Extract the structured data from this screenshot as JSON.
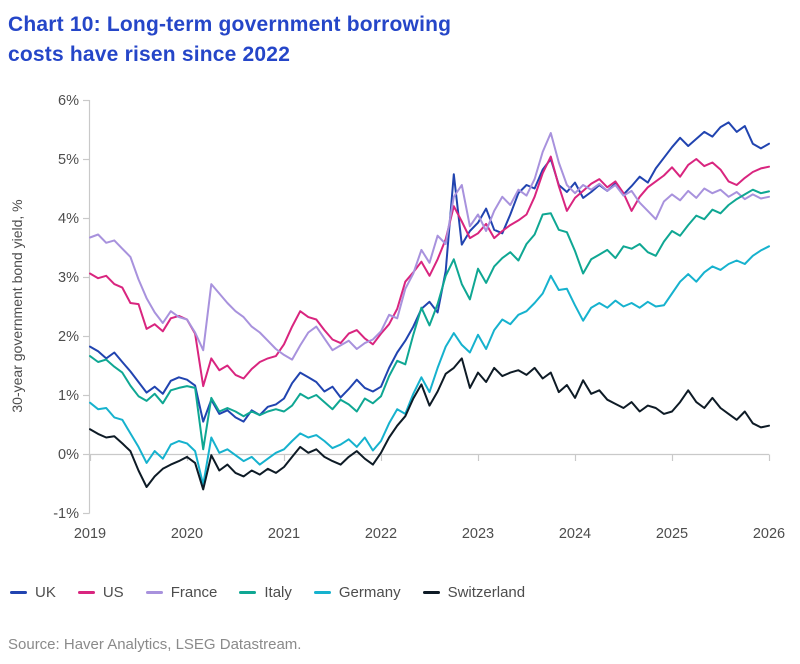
{
  "title": {
    "line1": "Chart 10: Long-term government borrowing",
    "line2": "costs have risen since 2022"
  },
  "source": "Source: Haver Analytics, LSEG Datastream.",
  "colors": {
    "title_blue": "#2546c8",
    "axis_gray": "#c9c9c9",
    "text_gray": "#4d4d4d",
    "source_gray": "#8a8a8a"
  },
  "legend": [
    {
      "label": "UK",
      "color": "#2144b0"
    },
    {
      "label": "US",
      "color": "#d9257f"
    },
    {
      "label": "France",
      "color": "#a892dd"
    },
    {
      "label": "Italy",
      "color": "#0fa793"
    },
    {
      "label": "Germany",
      "color": "#16b2ce"
    },
    {
      "label": "Switzerland",
      "color": "#0e1b26"
    }
  ],
  "chart_data": {
    "type": "line",
    "title": "Chart 10: Long-term government borrowing costs have risen since 2022",
    "xlabel": "",
    "ylabel": "30-year government bond yield, %",
    "xlim": [
      2019,
      2026
    ],
    "ylim": [
      -1,
      6
    ],
    "grid": "zero-baseline-only",
    "legend_position": "bottom",
    "x_tick_labels": [
      "2019",
      "2020",
      "2021",
      "2022",
      "2023",
      "2024",
      "2025",
      "2026"
    ],
    "y_tick_labels": [
      "6%",
      "5%",
      "4%",
      "3%",
      "2%",
      "1%",
      "0%",
      "-1%"
    ],
    "y_tick_values": [
      6,
      5,
      4,
      3,
      2,
      1,
      0,
      -1
    ],
    "x_start": 2019.0,
    "x_step": 0.0833333,
    "x_unit": "years (monthly samples, 2019-01 to 2026-01)",
    "series": [
      {
        "name": "UK",
        "color": "#2144b0",
        "values": [
          1.82,
          1.74,
          1.62,
          1.72,
          1.56,
          1.4,
          1.22,
          1.04,
          1.14,
          1.02,
          1.24,
          1.3,
          1.26,
          1.16,
          0.55,
          0.92,
          0.68,
          0.74,
          0.62,
          0.55,
          0.74,
          0.66,
          0.8,
          0.84,
          0.94,
          1.2,
          1.38,
          1.3,
          1.22,
          1.06,
          1.14,
          0.96,
          1.1,
          1.26,
          1.12,
          1.06,
          1.14,
          1.46,
          1.72,
          1.92,
          2.16,
          2.46,
          2.58,
          2.4,
          3.1,
          4.74,
          3.55,
          3.78,
          3.92,
          4.16,
          3.8,
          3.74,
          4.06,
          4.42,
          4.56,
          4.5,
          4.82,
          5.0,
          4.56,
          4.44,
          4.6,
          4.34,
          4.44,
          4.56,
          4.46,
          4.58,
          4.4,
          4.54,
          4.7,
          4.6,
          4.84,
          5.02,
          5.2,
          5.36,
          5.22,
          5.34,
          5.46,
          5.38,
          5.54,
          5.62,
          5.46,
          5.56,
          5.26,
          5.18,
          5.26
        ]
      },
      {
        "name": "US",
        "color": "#d9257f",
        "values": [
          3.06,
          2.98,
          3.02,
          2.88,
          2.82,
          2.56,
          2.54,
          2.12,
          2.2,
          2.08,
          2.3,
          2.34,
          2.28,
          2.04,
          1.15,
          1.62,
          1.42,
          1.5,
          1.34,
          1.28,
          1.44,
          1.56,
          1.62,
          1.66,
          1.86,
          2.16,
          2.42,
          2.32,
          2.28,
          2.1,
          1.94,
          1.88,
          2.04,
          2.1,
          1.96,
          1.86,
          2.04,
          2.2,
          2.46,
          2.92,
          3.08,
          3.26,
          3.02,
          3.3,
          3.64,
          4.2,
          3.94,
          3.66,
          3.74,
          3.9,
          3.66,
          3.78,
          3.88,
          3.96,
          4.06,
          4.36,
          4.76,
          5.04,
          4.54,
          4.12,
          4.34,
          4.46,
          4.58,
          4.66,
          4.52,
          4.62,
          4.42,
          4.12,
          4.36,
          4.52,
          4.62,
          4.72,
          4.86,
          4.7,
          4.9,
          5.0,
          4.88,
          4.94,
          4.82,
          4.62,
          4.56,
          4.68,
          4.78,
          4.84,
          4.87
        ]
      },
      {
        "name": "France",
        "color": "#a892dd",
        "values": [
          3.67,
          3.72,
          3.58,
          3.62,
          3.48,
          3.34,
          2.96,
          2.64,
          2.4,
          2.22,
          2.42,
          2.32,
          2.28,
          2.06,
          1.76,
          2.88,
          2.72,
          2.56,
          2.42,
          2.32,
          2.16,
          2.06,
          1.92,
          1.78,
          1.68,
          1.6,
          1.84,
          2.06,
          2.16,
          1.96,
          1.76,
          1.84,
          1.92,
          1.78,
          1.88,
          1.94,
          2.08,
          2.36,
          2.3,
          2.8,
          3.06,
          3.46,
          3.24,
          3.7,
          3.56,
          4.36,
          4.56,
          3.86,
          4.06,
          3.78,
          4.12,
          4.36,
          4.22,
          4.48,
          4.38,
          4.66,
          5.12,
          5.44,
          4.94,
          4.56,
          4.42,
          4.56,
          4.48,
          4.58,
          4.46,
          4.56,
          4.38,
          4.46,
          4.26,
          4.12,
          3.98,
          4.28,
          4.4,
          4.3,
          4.46,
          4.34,
          4.5,
          4.42,
          4.48,
          4.36,
          4.44,
          4.32,
          4.4,
          4.33,
          4.36
        ]
      },
      {
        "name": "Italy",
        "color": "#0fa793",
        "values": [
          1.66,
          1.56,
          1.6,
          1.48,
          1.38,
          1.16,
          0.98,
          0.9,
          1.02,
          0.86,
          1.08,
          1.12,
          1.15,
          1.12,
          0.08,
          0.95,
          0.72,
          0.78,
          0.72,
          0.64,
          0.72,
          0.66,
          0.72,
          0.76,
          0.72,
          0.82,
          1.02,
          0.94,
          1.0,
          0.88,
          0.76,
          0.92,
          0.84,
          0.72,
          0.94,
          0.86,
          0.98,
          1.32,
          1.58,
          1.52,
          2.02,
          2.48,
          2.18,
          2.54,
          3.02,
          3.3,
          2.88,
          2.62,
          3.14,
          2.9,
          3.18,
          3.32,
          3.42,
          3.28,
          3.56,
          3.72,
          4.06,
          4.08,
          3.8,
          3.76,
          3.44,
          3.06,
          3.3,
          3.38,
          3.46,
          3.32,
          3.52,
          3.48,
          3.56,
          3.42,
          3.36,
          3.6,
          3.78,
          3.7,
          3.88,
          4.04,
          3.98,
          4.14,
          4.08,
          4.22,
          4.32,
          4.4,
          4.48,
          4.42,
          4.45
        ]
      },
      {
        "name": "Germany",
        "color": "#16b2ce",
        "values": [
          0.87,
          0.76,
          0.78,
          0.62,
          0.58,
          0.35,
          0.12,
          -0.15,
          0.05,
          -0.08,
          0.16,
          0.22,
          0.18,
          0.05,
          -0.52,
          0.28,
          0.02,
          0.08,
          -0.02,
          -0.12,
          -0.05,
          -0.18,
          -0.08,
          0.02,
          0.08,
          0.22,
          0.35,
          0.28,
          0.32,
          0.22,
          0.1,
          0.16,
          0.25,
          0.12,
          0.28,
          0.06,
          0.22,
          0.52,
          0.76,
          0.68,
          1.02,
          1.3,
          1.05,
          1.46,
          1.82,
          2.05,
          1.85,
          1.72,
          2.02,
          1.78,
          2.1,
          2.28,
          2.2,
          2.36,
          2.42,
          2.56,
          2.72,
          3.02,
          2.78,
          2.8,
          2.52,
          2.26,
          2.48,
          2.56,
          2.48,
          2.6,
          2.5,
          2.56,
          2.48,
          2.58,
          2.5,
          2.52,
          2.72,
          2.92,
          3.05,
          2.92,
          3.08,
          3.18,
          3.12,
          3.22,
          3.28,
          3.22,
          3.36,
          3.45,
          3.52
        ]
      },
      {
        "name": "Switzerland",
        "color": "#0e1b26",
        "values": [
          0.42,
          0.34,
          0.28,
          0.3,
          0.18,
          0.05,
          -0.28,
          -0.56,
          -0.38,
          -0.25,
          -0.18,
          -0.12,
          -0.05,
          -0.15,
          -0.6,
          -0.02,
          -0.28,
          -0.18,
          -0.32,
          -0.38,
          -0.28,
          -0.35,
          -0.25,
          -0.32,
          -0.22,
          -0.05,
          0.12,
          0.02,
          0.08,
          -0.05,
          -0.12,
          -0.18,
          -0.05,
          0.05,
          -0.08,
          -0.18,
          0.02,
          0.28,
          0.48,
          0.64,
          0.94,
          1.18,
          0.82,
          1.06,
          1.36,
          1.46,
          1.62,
          1.12,
          1.38,
          1.22,
          1.46,
          1.32,
          1.38,
          1.42,
          1.34,
          1.46,
          1.28,
          1.38,
          1.05,
          1.17,
          0.95,
          1.25,
          1.02,
          1.08,
          0.92,
          0.85,
          0.78,
          0.88,
          0.72,
          0.82,
          0.78,
          0.68,
          0.72,
          0.88,
          1.08,
          0.88,
          0.78,
          0.95,
          0.78,
          0.68,
          0.58,
          0.72,
          0.52,
          0.45,
          0.48
        ]
      }
    ]
  }
}
